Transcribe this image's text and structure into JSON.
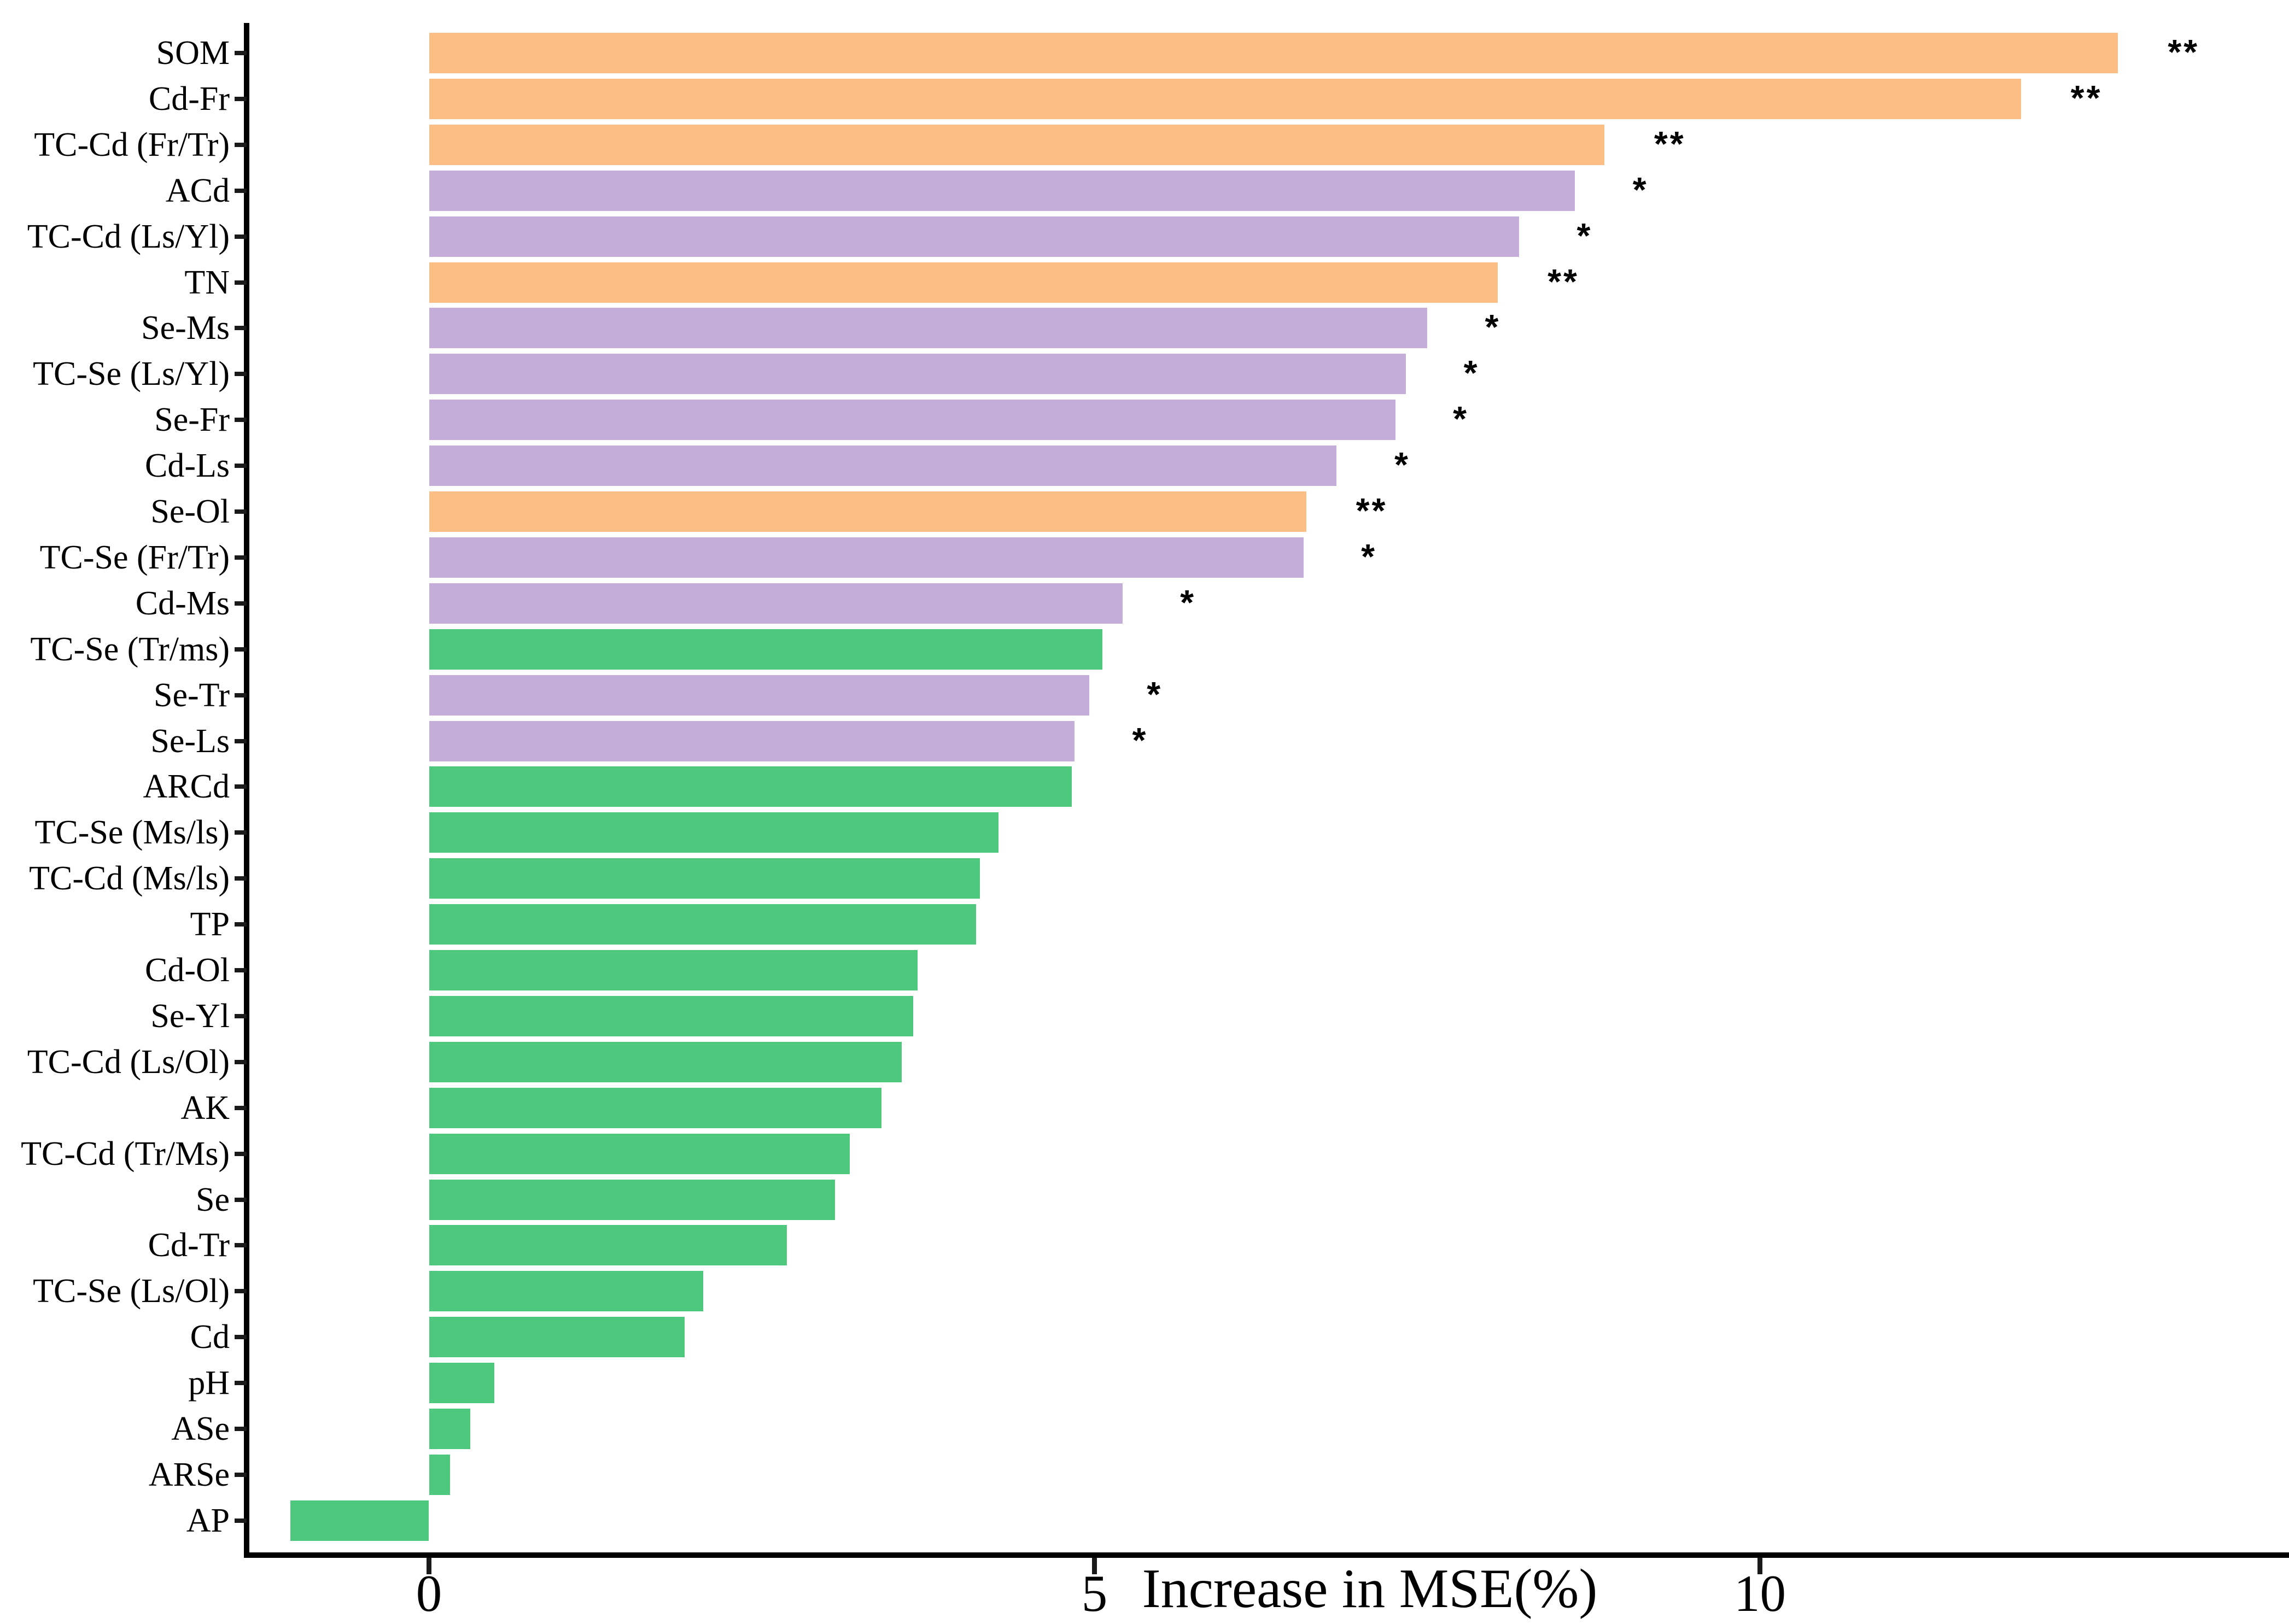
{
  "chart_data": {
    "type": "bar",
    "orientation": "horizontal",
    "title": "",
    "xlabel": "Increase in MSE(%)",
    "ylabel": "",
    "x_ticks": [
      0,
      5,
      10
    ],
    "xlim": [
      -1.37,
      13.97
    ],
    "grid": false,
    "legend_position": "none",
    "palette": {
      "orange": "#FDBE85",
      "purple": "#C4AED9",
      "green": "#4DC87C"
    },
    "significance_note": "** shown beside orange bars, * shown beside purple bars",
    "bars": [
      {
        "label": "SOM",
        "value": 12.69,
        "color_group": "orange",
        "sig": "**"
      },
      {
        "label": "Cd-Fr",
        "value": 11.96,
        "color_group": "orange",
        "sig": "**"
      },
      {
        "label": "TC-Cd (Fr/Tr)",
        "value": 8.83,
        "color_group": "orange",
        "sig": "**"
      },
      {
        "label": "ACd",
        "value": 8.61,
        "color_group": "purple",
        "sig": "*"
      },
      {
        "label": "TC-Cd (Ls/Yl)",
        "value": 8.19,
        "color_group": "purple",
        "sig": "*"
      },
      {
        "label": "TN",
        "value": 8.03,
        "color_group": "orange",
        "sig": "**"
      },
      {
        "label": "Se-Ms",
        "value": 7.5,
        "color_group": "purple",
        "sig": "*"
      },
      {
        "label": "TC-Se (Ls/Yl)",
        "value": 7.34,
        "color_group": "purple",
        "sig": "*"
      },
      {
        "label": "Se-Fr",
        "value": 7.26,
        "color_group": "purple",
        "sig": "*"
      },
      {
        "label": "Cd-Ls",
        "value": 6.82,
        "color_group": "purple",
        "sig": "*"
      },
      {
        "label": "Se-Ol",
        "value": 6.59,
        "color_group": "orange",
        "sig": "**"
      },
      {
        "label": "TC-Se (Fr/Tr)",
        "value": 6.57,
        "color_group": "purple",
        "sig": "*"
      },
      {
        "label": "Cd-Ms",
        "value": 5.21,
        "color_group": "purple",
        "sig": "*"
      },
      {
        "label": "TC-Se (Tr/ms)",
        "value": 5.06,
        "color_group": "green",
        "sig": ""
      },
      {
        "label": "Se-Tr",
        "value": 4.96,
        "color_group": "purple",
        "sig": "*"
      },
      {
        "label": "Se-Ls",
        "value": 4.85,
        "color_group": "purple",
        "sig": "*"
      },
      {
        "label": "ARCd",
        "value": 4.83,
        "color_group": "green",
        "sig": ""
      },
      {
        "label": "TC-Se (Ms/ls)",
        "value": 4.28,
        "color_group": "green",
        "sig": ""
      },
      {
        "label": "TC-Cd (Ms/ls)",
        "value": 4.14,
        "color_group": "green",
        "sig": ""
      },
      {
        "label": "TP",
        "value": 4.11,
        "color_group": "green",
        "sig": ""
      },
      {
        "label": "Cd-Ol",
        "value": 3.67,
        "color_group": "green",
        "sig": ""
      },
      {
        "label": "Se-Yl",
        "value": 3.64,
        "color_group": "green",
        "sig": ""
      },
      {
        "label": "TC-Cd (Ls/Ol)",
        "value": 3.55,
        "color_group": "green",
        "sig": ""
      },
      {
        "label": "AK",
        "value": 3.4,
        "color_group": "green",
        "sig": ""
      },
      {
        "label": "TC-Cd (Tr/Ms)",
        "value": 3.16,
        "color_group": "green",
        "sig": ""
      },
      {
        "label": "Se",
        "value": 3.05,
        "color_group": "green",
        "sig": ""
      },
      {
        "label": "Cd-Tr",
        "value": 2.69,
        "color_group": "green",
        "sig": ""
      },
      {
        "label": "TC-Se (Ls/Ol)",
        "value": 2.06,
        "color_group": "green",
        "sig": ""
      },
      {
        "label": "Cd",
        "value": 1.92,
        "color_group": "green",
        "sig": ""
      },
      {
        "label": "pH",
        "value": 0.49,
        "color_group": "green",
        "sig": ""
      },
      {
        "label": "ASe",
        "value": 0.31,
        "color_group": "green",
        "sig": ""
      },
      {
        "label": "ARSe",
        "value": 0.16,
        "color_group": "green",
        "sig": ""
      },
      {
        "label": "AP",
        "value": -1.04,
        "color_group": "green",
        "sig": ""
      }
    ]
  }
}
